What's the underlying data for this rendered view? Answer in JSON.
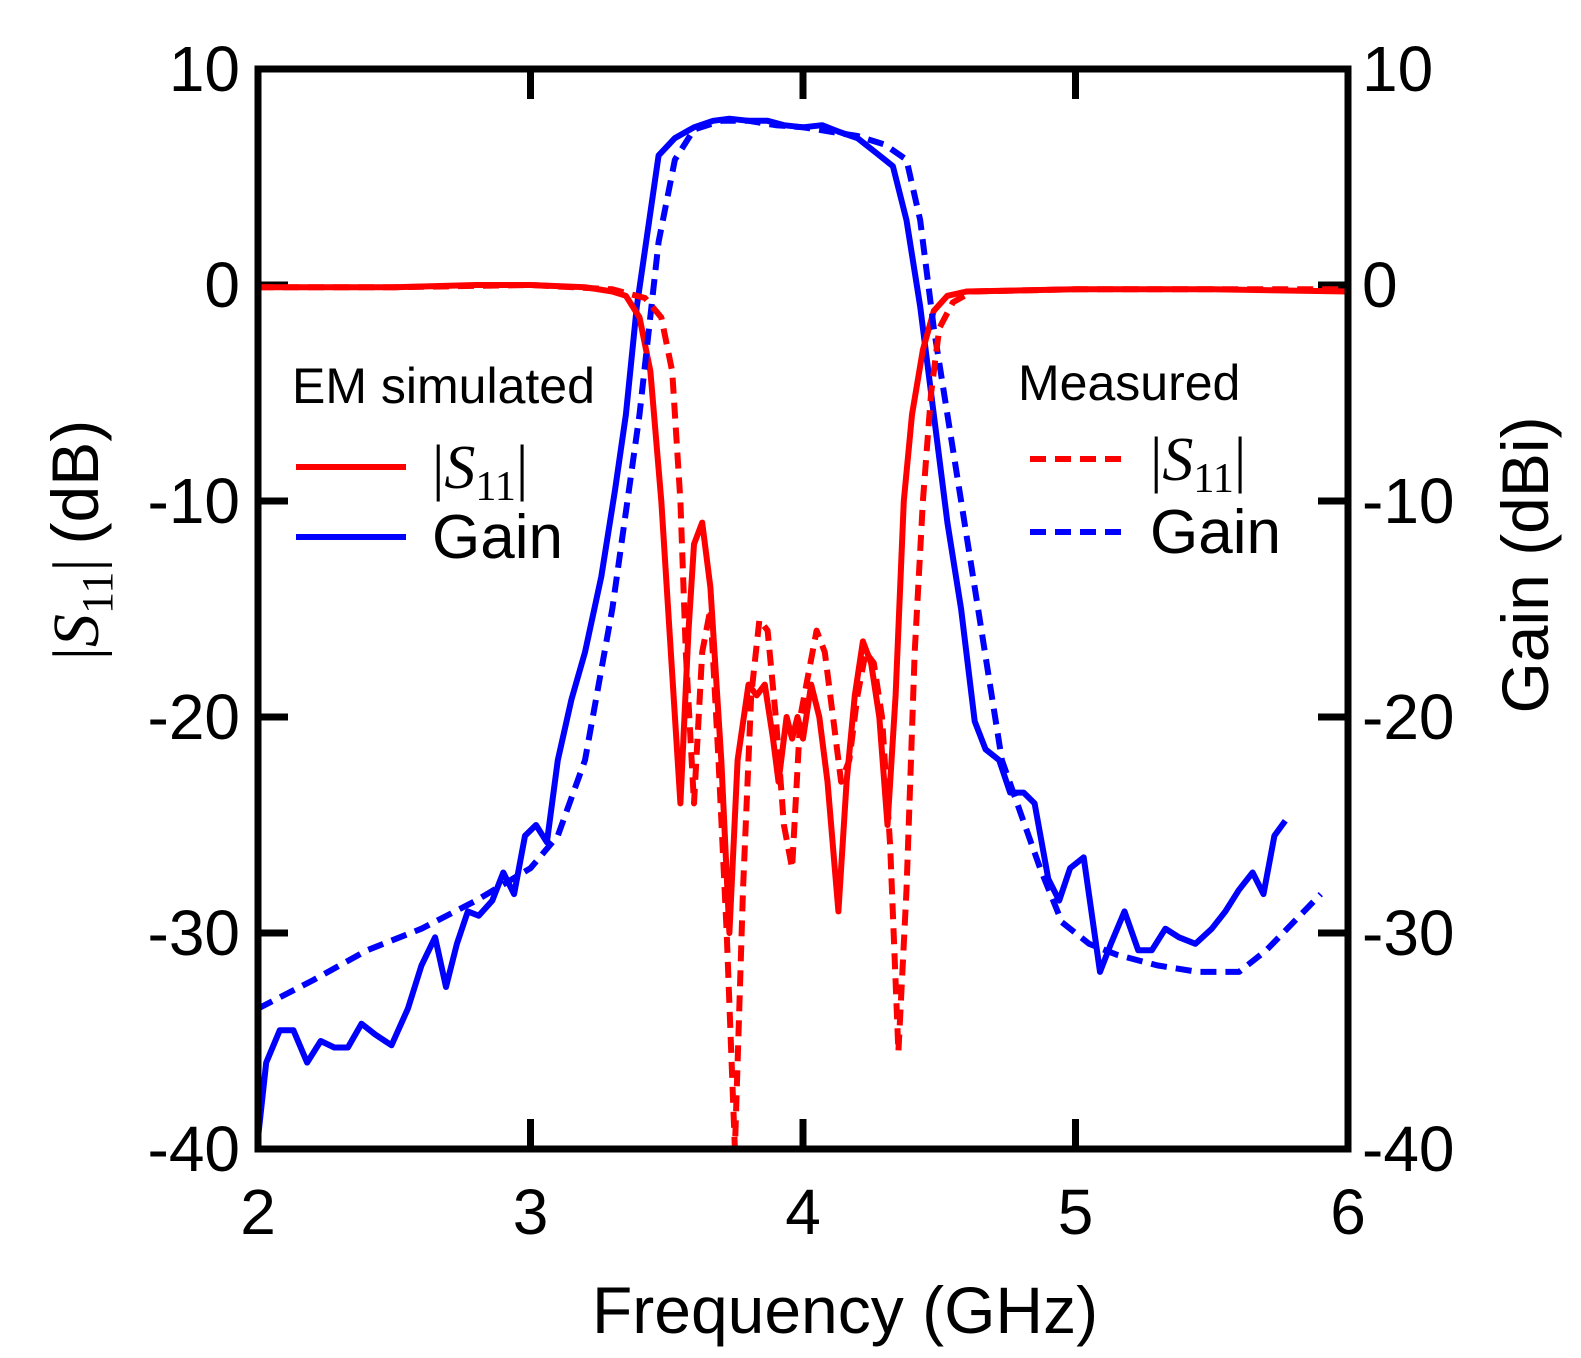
{
  "chart_data": {
    "type": "line",
    "xlabel": "Frequency (GHz)",
    "ylabel_left": {
      "bar": "|",
      "S": "S",
      "sub": "11",
      "unit": "(dB)"
    },
    "ylabel_right": "Gain (dBi)",
    "xlim": [
      2,
      6
    ],
    "ylim_left": [
      -40,
      10
    ],
    "ylim_right": [
      -40,
      10
    ],
    "x_ticks": [
      "2",
      "3",
      "4",
      "5",
      "6"
    ],
    "y_ticks_left": [
      "10",
      "0",
      "-10",
      "-20",
      "-30",
      "-40"
    ],
    "y_ticks_right": [
      "10",
      "0",
      "-10",
      "-20",
      "-30",
      "-40"
    ],
    "grid": false,
    "legend": {
      "left": {
        "title": "EM simulated",
        "placement": "upper-left",
        "entries": [
          {
            "series_index": 0,
            "S": "S",
            "sub": "11",
            "bar": "|"
          },
          {
            "series_index": 1,
            "label": "Gain"
          }
        ]
      },
      "right": {
        "title": "Measured",
        "placement": "upper-right",
        "entries": [
          {
            "series_index": 2,
            "S": "S",
            "sub": "11",
            "bar": "|"
          },
          {
            "series_index": 3,
            "label": "Gain"
          }
        ]
      }
    },
    "series": [
      {
        "style": "solid",
        "color": "#ff0000",
        "axis": "left",
        "points": [
          [
            2.0,
            -0.1
          ],
          [
            2.5,
            -0.1
          ],
          [
            2.8,
            0.0
          ],
          [
            3.0,
            0.0
          ],
          [
            3.2,
            -0.1
          ],
          [
            3.3,
            -0.3
          ],
          [
            3.35,
            -0.5
          ],
          [
            3.4,
            -1.5
          ],
          [
            3.44,
            -4
          ],
          [
            3.48,
            -10
          ],
          [
            3.52,
            -18
          ],
          [
            3.55,
            -24
          ],
          [
            3.58,
            -16
          ],
          [
            3.6,
            -12
          ],
          [
            3.63,
            -11
          ],
          [
            3.66,
            -14
          ],
          [
            3.7,
            -22
          ],
          [
            3.73,
            -30
          ],
          [
            3.76,
            -22
          ],
          [
            3.8,
            -18.5
          ],
          [
            3.83,
            -19
          ],
          [
            3.86,
            -18.5
          ],
          [
            3.89,
            -21
          ],
          [
            3.91,
            -23
          ],
          [
            3.94,
            -20
          ],
          [
            3.96,
            -21
          ],
          [
            3.98,
            -20
          ],
          [
            4.0,
            -21
          ],
          [
            4.03,
            -18.5
          ],
          [
            4.06,
            -20
          ],
          [
            4.09,
            -23
          ],
          [
            4.13,
            -29
          ],
          [
            4.16,
            -23
          ],
          [
            4.19,
            -19
          ],
          [
            4.22,
            -16.5
          ],
          [
            4.25,
            -17.5
          ],
          [
            4.28,
            -20
          ],
          [
            4.31,
            -25
          ],
          [
            4.34,
            -19
          ],
          [
            4.37,
            -10
          ],
          [
            4.4,
            -6
          ],
          [
            4.44,
            -3
          ],
          [
            4.48,
            -1.2
          ],
          [
            4.53,
            -0.5
          ],
          [
            4.6,
            -0.3
          ],
          [
            5.0,
            -0.2
          ],
          [
            5.5,
            -0.2
          ],
          [
            6.0,
            -0.3
          ]
        ]
      },
      {
        "style": "solid",
        "color": "#0000ff",
        "axis": "right",
        "points": [
          [
            2.0,
            -39.5
          ],
          [
            2.03,
            -36
          ],
          [
            2.08,
            -34.5
          ],
          [
            2.13,
            -34.5
          ],
          [
            2.18,
            -36
          ],
          [
            2.23,
            -35
          ],
          [
            2.28,
            -35.3
          ],
          [
            2.33,
            -35.3
          ],
          [
            2.38,
            -34.2
          ],
          [
            2.43,
            -34.7
          ],
          [
            2.49,
            -35.2
          ],
          [
            2.55,
            -33.5
          ],
          [
            2.6,
            -31.5
          ],
          [
            2.65,
            -30.2
          ],
          [
            2.69,
            -32.5
          ],
          [
            2.73,
            -30.5
          ],
          [
            2.77,
            -29
          ],
          [
            2.81,
            -29.2
          ],
          [
            2.86,
            -28.5
          ],
          [
            2.9,
            -27.2
          ],
          [
            2.94,
            -28.2
          ],
          [
            2.98,
            -25.5
          ],
          [
            3.02,
            -25
          ],
          [
            3.06,
            -25.8
          ],
          [
            3.1,
            -22
          ],
          [
            3.15,
            -19.2
          ],
          [
            3.2,
            -17
          ],
          [
            3.26,
            -13.5
          ],
          [
            3.31,
            -9.5
          ],
          [
            3.35,
            -6
          ],
          [
            3.39,
            -1
          ],
          [
            3.43,
            2.5
          ],
          [
            3.47,
            6
          ],
          [
            3.53,
            6.8
          ],
          [
            3.6,
            7.3
          ],
          [
            3.67,
            7.6
          ],
          [
            3.73,
            7.7
          ],
          [
            3.8,
            7.6
          ],
          [
            3.87,
            7.6
          ],
          [
            3.93,
            7.4
          ],
          [
            4.0,
            7.3
          ],
          [
            4.07,
            7.4
          ],
          [
            4.13,
            7.1
          ],
          [
            4.2,
            6.8
          ],
          [
            4.27,
            6.1
          ],
          [
            4.33,
            5.5
          ],
          [
            4.38,
            3
          ],
          [
            4.43,
            -1
          ],
          [
            4.48,
            -6
          ],
          [
            4.53,
            -11
          ],
          [
            4.58,
            -15
          ],
          [
            4.63,
            -20.2
          ],
          [
            4.67,
            -21.5
          ],
          [
            4.72,
            -22
          ],
          [
            4.76,
            -23.5
          ],
          [
            4.81,
            -23.5
          ],
          [
            4.85,
            -24
          ],
          [
            4.9,
            -27.5
          ],
          [
            4.94,
            -28.5
          ],
          [
            4.98,
            -27
          ],
          [
            5.03,
            -26.5
          ],
          [
            5.09,
            -31.8
          ],
          [
            5.13,
            -30.5
          ],
          [
            5.18,
            -29
          ],
          [
            5.23,
            -30.8
          ],
          [
            5.28,
            -30.8
          ],
          [
            5.33,
            -29.8
          ],
          [
            5.38,
            -30.2
          ],
          [
            5.44,
            -30.5
          ],
          [
            5.5,
            -29.8
          ],
          [
            5.55,
            -29
          ],
          [
            5.6,
            -28
          ],
          [
            5.65,
            -27.2
          ],
          [
            5.69,
            -28.2
          ],
          [
            5.73,
            -25.5
          ],
          [
            5.77,
            -24.8
          ]
        ]
      },
      {
        "style": "dashed",
        "color": "#ff0000",
        "axis": "left",
        "points": [
          [
            2.0,
            -0.1
          ],
          [
            2.5,
            -0.1
          ],
          [
            3.0,
            0.0
          ],
          [
            3.3,
            -0.2
          ],
          [
            3.42,
            -0.6
          ],
          [
            3.48,
            -1.5
          ],
          [
            3.52,
            -4
          ],
          [
            3.55,
            -10
          ],
          [
            3.57,
            -17
          ],
          [
            3.6,
            -24
          ],
          [
            3.63,
            -17
          ],
          [
            3.66,
            -15
          ],
          [
            3.69,
            -22
          ],
          [
            3.72,
            -30
          ],
          [
            3.75,
            -40
          ],
          [
            3.78,
            -28
          ],
          [
            3.81,
            -19
          ],
          [
            3.84,
            -15.5
          ],
          [
            3.87,
            -16
          ],
          [
            3.9,
            -20
          ],
          [
            3.93,
            -25
          ],
          [
            3.96,
            -27
          ],
          [
            3.99,
            -20
          ],
          [
            4.02,
            -18
          ],
          [
            4.05,
            -16
          ],
          [
            4.08,
            -17
          ],
          [
            4.11,
            -20
          ],
          [
            4.14,
            -23
          ],
          [
            4.17,
            -22
          ],
          [
            4.2,
            -19
          ],
          [
            4.23,
            -17
          ],
          [
            4.26,
            -17.5
          ],
          [
            4.29,
            -20
          ],
          [
            4.32,
            -26
          ],
          [
            4.35,
            -35.5
          ],
          [
            4.38,
            -28
          ],
          [
            4.41,
            -17
          ],
          [
            4.44,
            -10
          ],
          [
            4.47,
            -5
          ],
          [
            4.5,
            -2
          ],
          [
            4.55,
            -0.8
          ],
          [
            4.62,
            -0.3
          ],
          [
            5.0,
            -0.2
          ],
          [
            5.5,
            -0.2
          ],
          [
            6.0,
            -0.2
          ]
        ]
      },
      {
        "style": "dashed",
        "color": "#0000ff",
        "axis": "right",
        "points": [
          [
            2.0,
            -33.5
          ],
          [
            2.2,
            -32.2
          ],
          [
            2.4,
            -30.8
          ],
          [
            2.6,
            -29.8
          ],
          [
            2.8,
            -28.5
          ],
          [
            3.0,
            -27
          ],
          [
            3.1,
            -25.5
          ],
          [
            3.2,
            -22
          ],
          [
            3.3,
            -15
          ],
          [
            3.4,
            -6
          ],
          [
            3.47,
            2
          ],
          [
            3.53,
            5.8
          ],
          [
            3.6,
            7.2
          ],
          [
            3.7,
            7.6
          ],
          [
            3.8,
            7.6
          ],
          [
            3.9,
            7.4
          ],
          [
            4.0,
            7.3
          ],
          [
            4.1,
            7.1
          ],
          [
            4.2,
            6.9
          ],
          [
            4.3,
            6.5
          ],
          [
            4.38,
            5.8
          ],
          [
            4.43,
            3
          ],
          [
            4.48,
            -2
          ],
          [
            4.53,
            -6
          ],
          [
            4.58,
            -10
          ],
          [
            4.63,
            -14
          ],
          [
            4.68,
            -18
          ],
          [
            4.73,
            -22
          ],
          [
            4.8,
            -24.5
          ],
          [
            4.87,
            -27
          ],
          [
            4.95,
            -29.5
          ],
          [
            5.05,
            -30.5
          ],
          [
            5.15,
            -31
          ],
          [
            5.3,
            -31.5
          ],
          [
            5.45,
            -31.8
          ],
          [
            5.6,
            -31.8
          ],
          [
            5.7,
            -30.8
          ],
          [
            5.8,
            -29.5
          ],
          [
            5.9,
            -28.2
          ]
        ]
      }
    ]
  }
}
